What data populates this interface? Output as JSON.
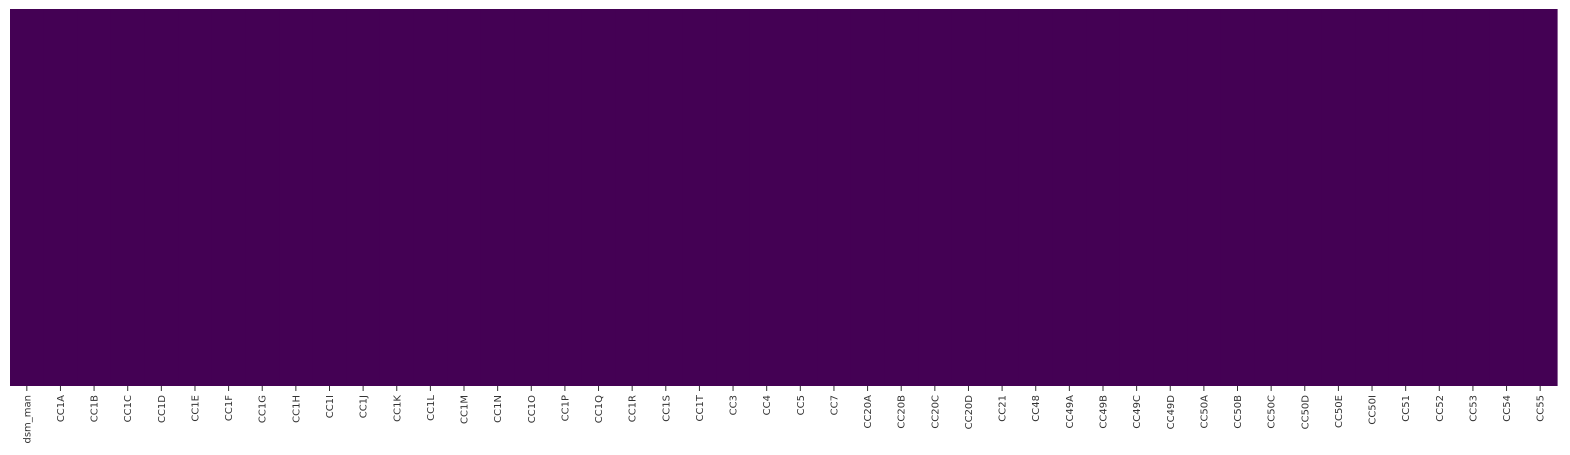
{
  "chart_data": {
    "type": "heatmap",
    "title": "",
    "xlabel": "",
    "ylabel": "",
    "x": [
      "dsm_man",
      "CC1A",
      "CC1B",
      "CC1C",
      "CC1D",
      "CC1E",
      "CC1F",
      "CC1G",
      "CC1H",
      "CC1I",
      "CC1J",
      "CC1K",
      "CC1L",
      "CC1M",
      "CC1N",
      "CC1O",
      "CC1P",
      "CC1Q",
      "CC1R",
      "CC1S",
      "CC1T",
      "CC3",
      "CC4",
      "CC5",
      "CC7",
      "CC20A",
      "CC20B",
      "CC20C",
      "CC20D",
      "CC21",
      "CC48",
      "CC49A",
      "CC49B",
      "CC49C",
      "CC49D",
      "CC50A",
      "CC50B",
      "CC50C",
      "CC50D",
      "CC50E",
      "CC50I",
      "CC51",
      "CC52",
      "CC53",
      "CC54",
      "CC55"
    ],
    "values_all": 0,
    "y_ticks_shown": false,
    "colorbar": false,
    "colormap": "viridis",
    "grid": false
  },
  "colors": {
    "cell_fill": "#440154",
    "tick_color": "#333333"
  }
}
